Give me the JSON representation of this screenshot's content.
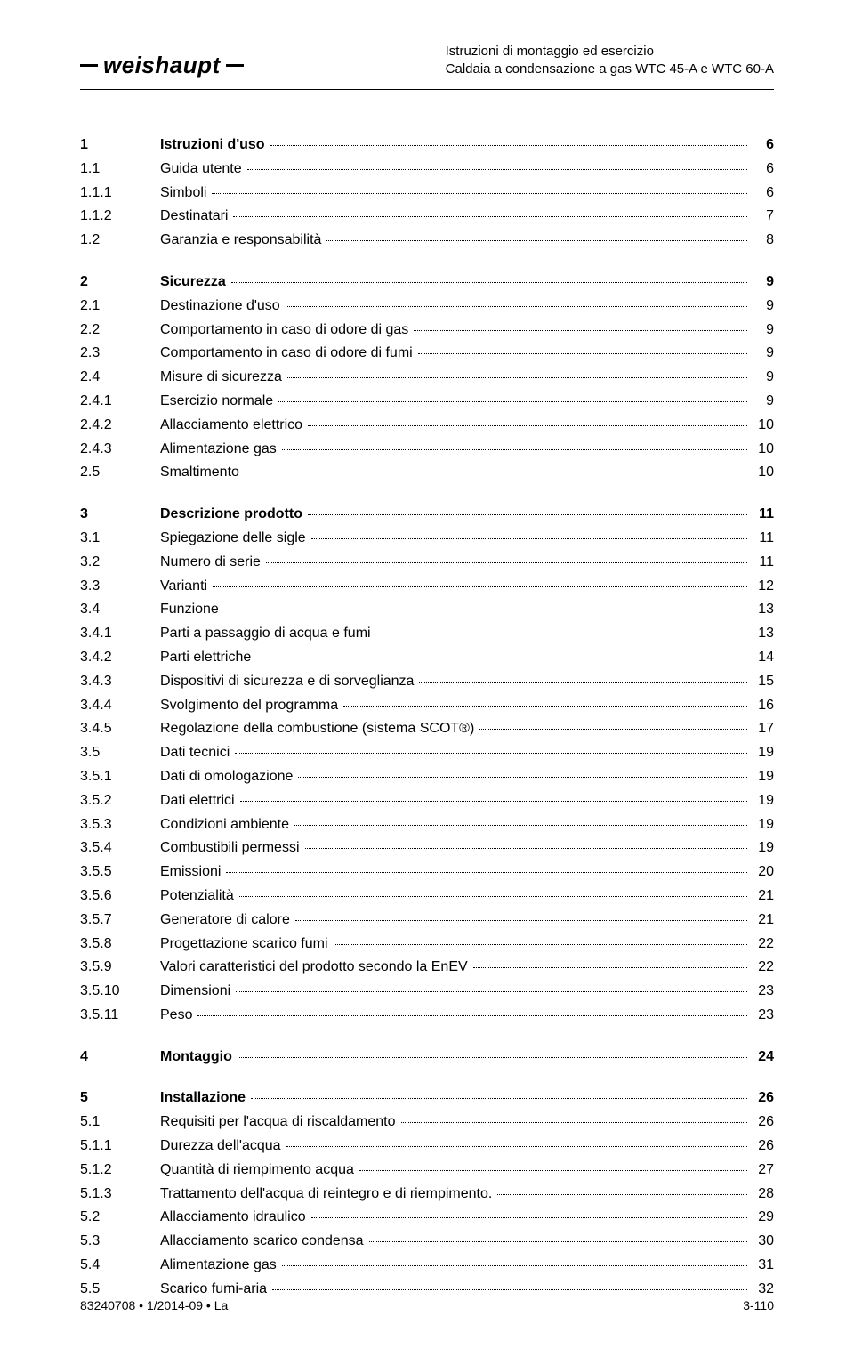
{
  "header": {
    "brand": "weishaupt",
    "line1": "Istruzioni di montaggio ed esercizio",
    "line2": "Caldaia a condensazione a gas WTC 45-A e WTC 60-A"
  },
  "footer": {
    "left": "83240708 • 1/2014-09 • La",
    "center": "3-110"
  },
  "toc": [
    {
      "group": true,
      "items": [
        {
          "n": "1",
          "t": "Istruzioni d'uso",
          "p": "6",
          "bold": true
        },
        {
          "n": "1.1",
          "t": "Guida utente",
          "p": "6"
        },
        {
          "n": "1.1.1",
          "t": "Simboli",
          "p": "6"
        },
        {
          "n": "1.1.2",
          "t": "Destinatari",
          "p": "7"
        },
        {
          "n": "1.2",
          "t": "Garanzia e responsabilità",
          "p": "8"
        }
      ]
    },
    {
      "group": true,
      "items": [
        {
          "n": "2",
          "t": "Sicurezza",
          "p": "9",
          "bold": true
        },
        {
          "n": "2.1",
          "t": "Destinazione d'uso",
          "p": "9"
        },
        {
          "n": "2.2",
          "t": "Comportamento in caso di odore di gas",
          "p": "9"
        },
        {
          "n": "2.3",
          "t": "Comportamento in caso di odore di fumi",
          "p": "9"
        },
        {
          "n": "2.4",
          "t": "Misure di sicurezza",
          "p": "9"
        },
        {
          "n": "2.4.1",
          "t": "Esercizio normale",
          "p": "9"
        },
        {
          "n": "2.4.2",
          "t": "Allacciamento elettrico",
          "p": "10"
        },
        {
          "n": "2.4.3",
          "t": "Alimentazione gas",
          "p": "10"
        },
        {
          "n": "2.5",
          "t": "Smaltimento",
          "p": "10"
        }
      ]
    },
    {
      "group": true,
      "items": [
        {
          "n": "3",
          "t": "Descrizione prodotto",
          "p": "11",
          "bold": true
        },
        {
          "n": "3.1",
          "t": "Spiegazione delle sigle",
          "p": "11"
        },
        {
          "n": "3.2",
          "t": "Numero di serie",
          "p": "11"
        },
        {
          "n": "3.3",
          "t": "Varianti",
          "p": "12"
        },
        {
          "n": "3.4",
          "t": "Funzione",
          "p": "13"
        },
        {
          "n": "3.4.1",
          "t": "Parti a passaggio di acqua e fumi",
          "p": "13"
        },
        {
          "n": "3.4.2",
          "t": "Parti elettriche",
          "p": "14"
        },
        {
          "n": "3.4.3",
          "t": "Dispositivi di sicurezza e di sorveglianza",
          "p": "15"
        },
        {
          "n": "3.4.4",
          "t": "Svolgimento del programma",
          "p": "16"
        },
        {
          "n": "3.4.5",
          "t": "Regolazione della combustione (sistema SCOT®)",
          "p": "17"
        },
        {
          "n": "3.5",
          "t": "Dati tecnici",
          "p": "19"
        },
        {
          "n": "3.5.1",
          "t": "Dati di omologazione",
          "p": "19"
        },
        {
          "n": "3.5.2",
          "t": "Dati elettrici",
          "p": "19"
        },
        {
          "n": "3.5.3",
          "t": "Condizioni ambiente",
          "p": "19"
        },
        {
          "n": "3.5.4",
          "t": "Combustibili permessi",
          "p": "19"
        },
        {
          "n": "3.5.5",
          "t": "Emissioni",
          "p": "20"
        },
        {
          "n": "3.5.6",
          "t": "Potenzialità",
          "p": "21"
        },
        {
          "n": "3.5.7",
          "t": "Generatore di calore",
          "p": "21"
        },
        {
          "n": "3.5.8",
          "t": "Progettazione scarico fumi",
          "p": "22"
        },
        {
          "n": "3.5.9",
          "t": "Valori caratteristici del prodotto secondo la EnEV",
          "p": "22"
        },
        {
          "n": "3.5.10",
          "t": "Dimensioni",
          "p": "23"
        },
        {
          "n": "3.5.11",
          "t": "Peso",
          "p": "23"
        }
      ]
    },
    {
      "group": true,
      "items": [
        {
          "n": "4",
          "t": "Montaggio",
          "p": "24",
          "bold": true
        }
      ]
    },
    {
      "group": true,
      "items": [
        {
          "n": "5",
          "t": "Installazione",
          "p": "26",
          "bold": true
        },
        {
          "n": "5.1",
          "t": "Requisiti per l'acqua di riscaldamento",
          "p": "26"
        },
        {
          "n": "5.1.1",
          "t": "Durezza dell'acqua",
          "p": "26"
        },
        {
          "n": "5.1.2",
          "t": "Quantità di riempimento acqua",
          "p": "27"
        },
        {
          "n": "5.1.3",
          "t": "Trattamento dell'acqua di reintegro e di riempimento.",
          "p": "28"
        },
        {
          "n": "5.2",
          "t": "Allacciamento idraulico",
          "p": "29"
        },
        {
          "n": "5.3",
          "t": "Allacciamento scarico condensa",
          "p": "30"
        },
        {
          "n": "5.4",
          "t": "Alimentazione gas",
          "p": "31"
        },
        {
          "n": "5.5",
          "t": "Scarico fumi-aria",
          "p": "32"
        }
      ]
    }
  ]
}
